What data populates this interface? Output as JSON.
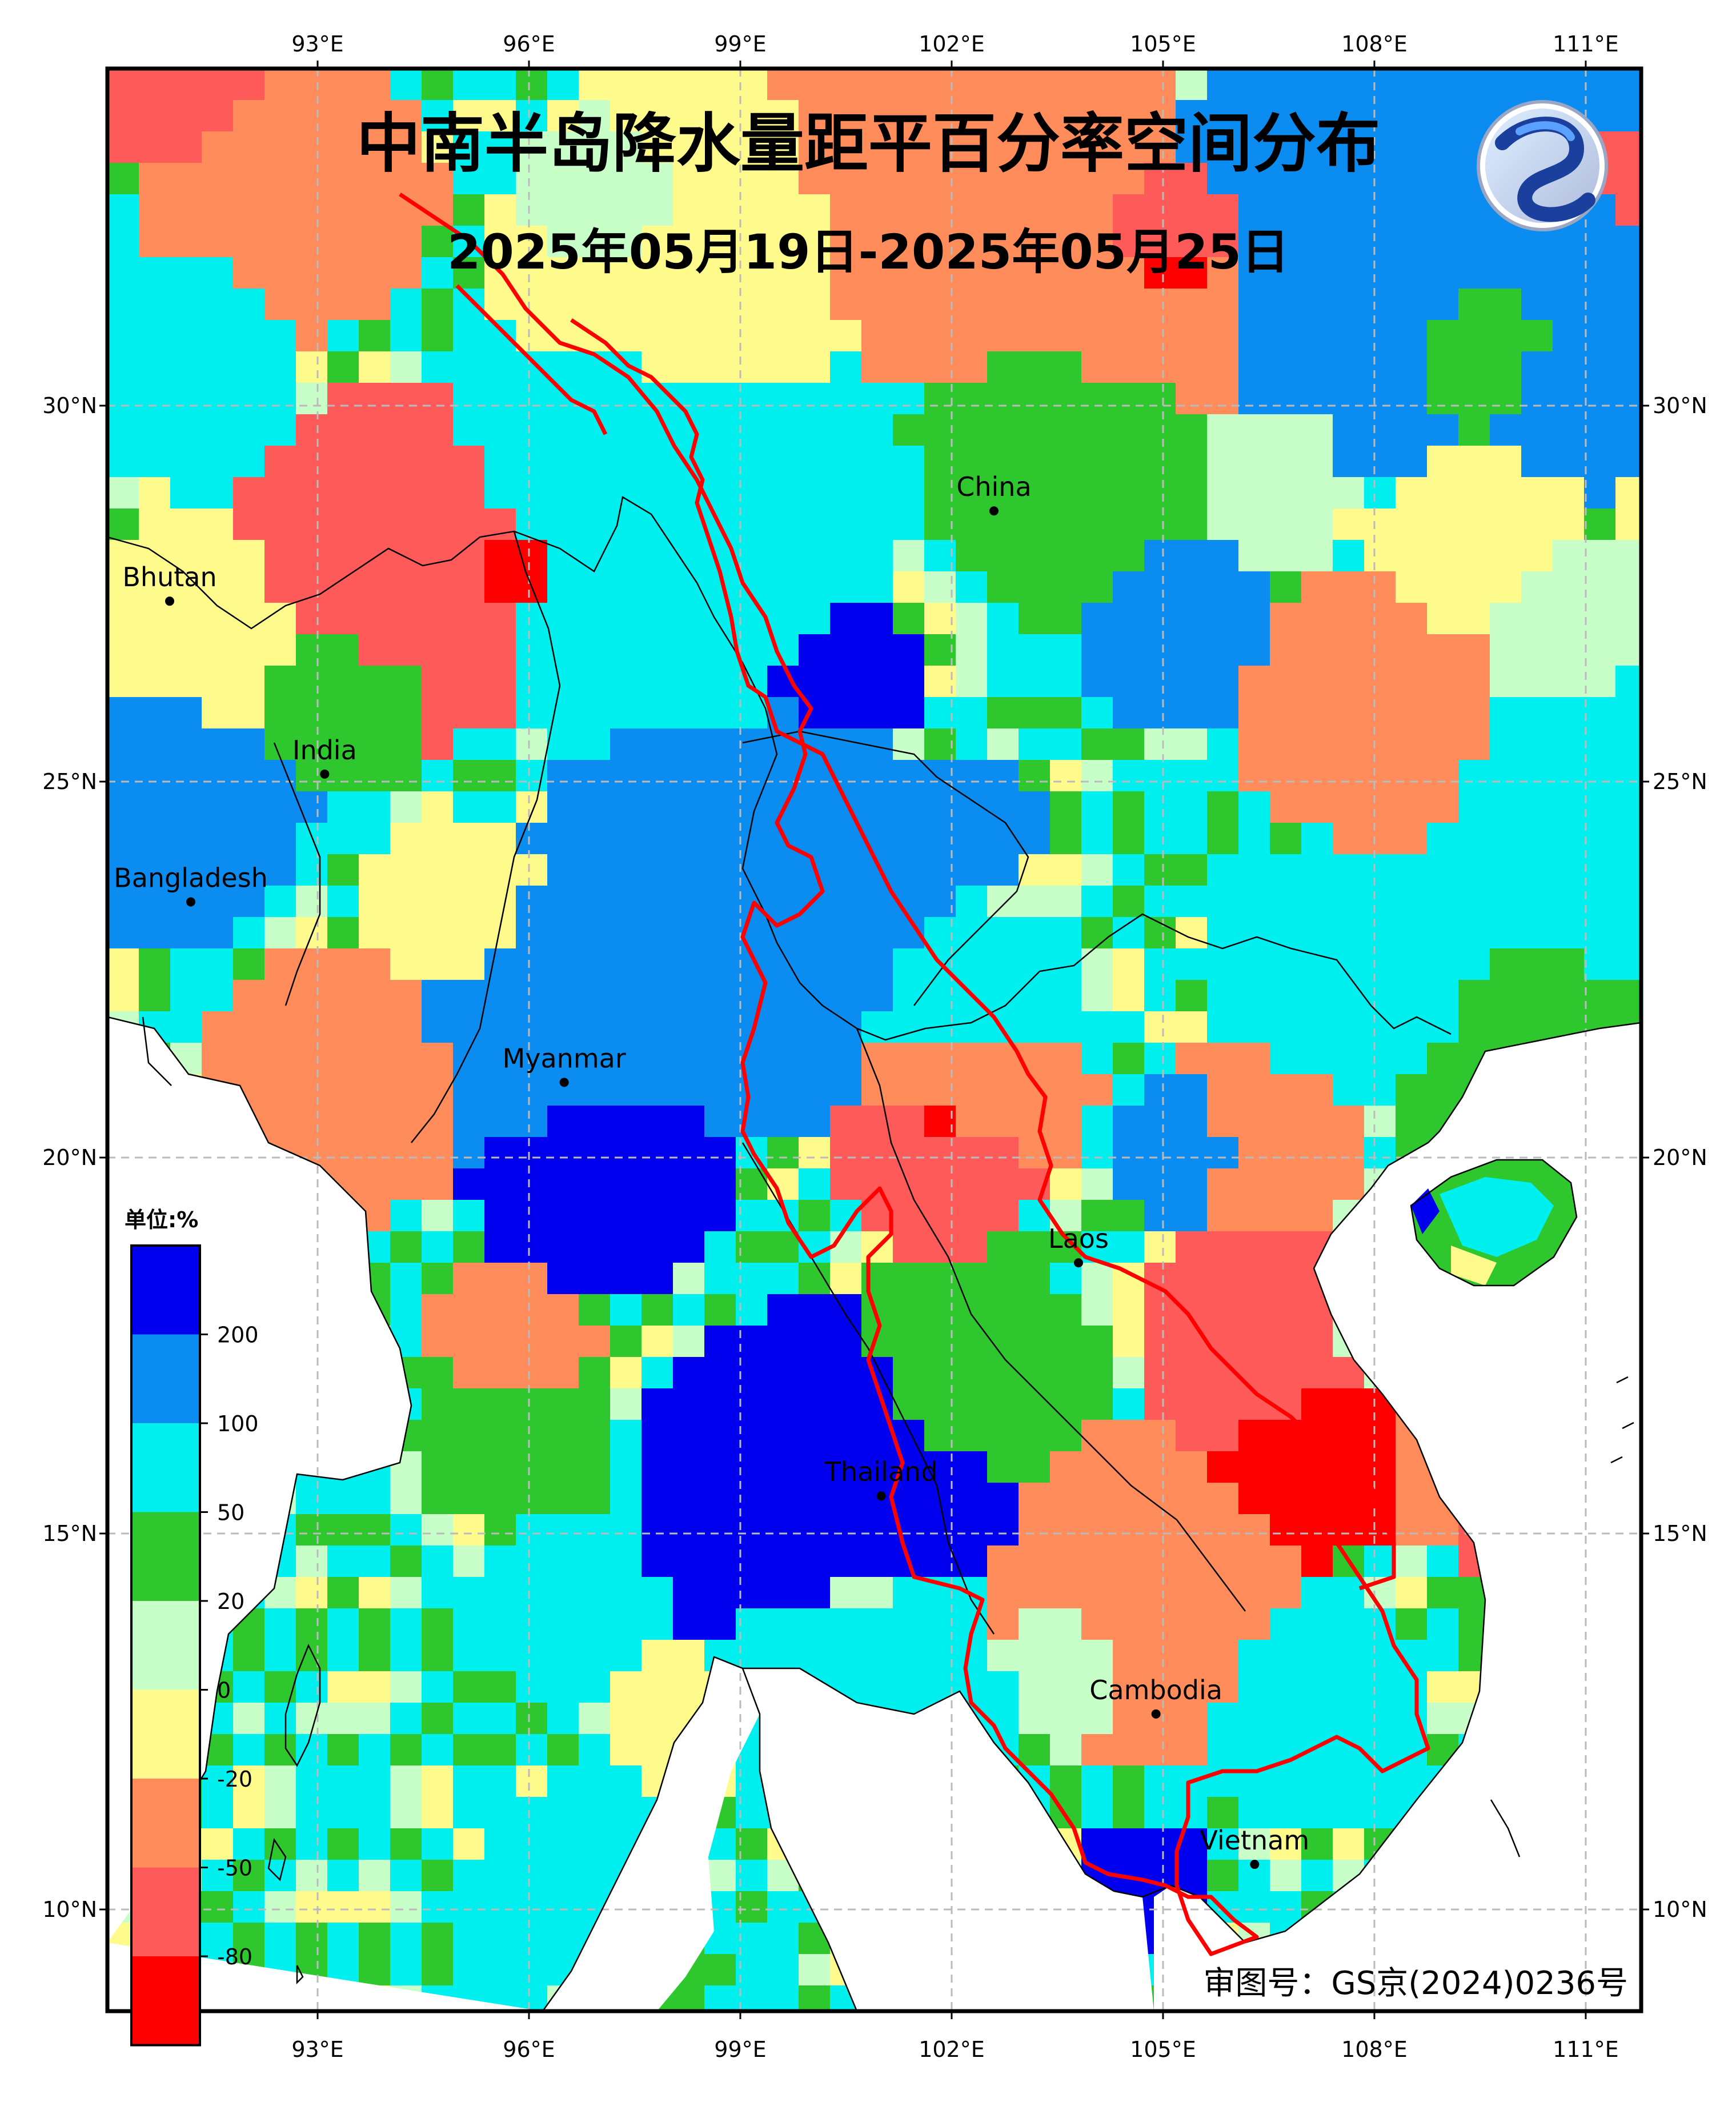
{
  "title": "中南半岛降水量距平百分率空间分布",
  "subtitle": "2025年05月19日-2025年05月25日",
  "footer": "审图号：GS京(2024)0236号",
  "legend": {
    "unit": "单位:%",
    "labels": [
      "200",
      "100",
      "50",
      "20",
      "0",
      "-20",
      "-50",
      "-80"
    ],
    "colors": [
      "#0000ee",
      "#0a8cf0",
      "#00f0f0",
      "#2ec82e",
      "#c8ffc8",
      "#fffa8c",
      "#ff8c5a",
      "#ff5a5a",
      "#ff0000"
    ]
  },
  "axes": {
    "lon_labels": [
      "93°E",
      "96°E",
      "99°E",
      "102°E",
      "105°E",
      "108°E",
      "111°E"
    ],
    "lat_labels": [
      "30°N",
      "25°N",
      "20°N",
      "15°N",
      "10°N"
    ]
  },
  "places": [
    {
      "name": "China",
      "lon": 102.6,
      "lat": 28.6
    },
    {
      "name": "Bhutan",
      "lon": 90.9,
      "lat": 27.4
    },
    {
      "name": "India",
      "lon": 93.1,
      "lat": 25.1
    },
    {
      "name": "Bangladesh",
      "lon": 91.2,
      "lat": 23.4
    },
    {
      "name": "Myanmar",
      "lon": 96.5,
      "lat": 21.0
    },
    {
      "name": "Laos",
      "lon": 103.8,
      "lat": 18.6
    },
    {
      "name": "Thailand",
      "lon": 101.0,
      "lat": 15.5
    },
    {
      "name": "Cambodia",
      "lon": 104.9,
      "lat": 12.6
    },
    {
      "name": "Vietnam",
      "lon": 106.3,
      "lat": 10.6
    }
  ],
  "colors": {
    "boundary_red": "#ff0000",
    "coastline": "#000000",
    "grid": "#bbbbbb"
  },
  "logo": "stylized-dragon-logo"
}
